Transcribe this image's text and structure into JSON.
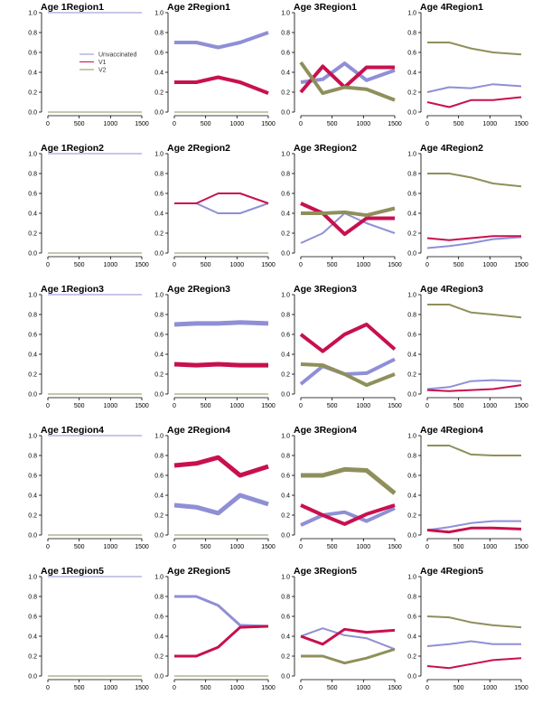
{
  "colors": {
    "Unvaccinated": "#8f8fd6",
    "V1": "#c8104e",
    "V2": "#8f8f5c"
  },
  "legend": {
    "items": [
      "Unvaccinated",
      "V1",
      "V2"
    ]
  },
  "chart_data": {
    "type": "line",
    "layout": "small-multiples grid, 5 rows x 4 columns",
    "xticks": [
      "0",
      "500",
      "1000",
      "1500"
    ],
    "yticks": [
      "0.0",
      "0.2",
      "0.4",
      "0.6",
      "0.8",
      "1.0"
    ],
    "xlim": [
      0,
      1500
    ],
    "ylim": [
      0,
      1
    ],
    "series_names": [
      "Unvaccinated",
      "V1",
      "V2"
    ],
    "legend_position": "inside first panel, upper-middle",
    "panels": [
      {
        "title": "Age 1Region1",
        "x": [
          0,
          1500
        ],
        "series": [
          {
            "name": "Unvaccinated",
            "values": [
              1,
              1
            ],
            "width": 1
          },
          {
            "name": "V1",
            "values": [
              0,
              0
            ],
            "width": 1
          },
          {
            "name": "V2",
            "values": [
              0,
              0
            ],
            "width": 1
          }
        ]
      },
      {
        "title": "Age 2Region1",
        "x": [
          0,
          350,
          700,
          1050,
          1500
        ],
        "series": [
          {
            "name": "Unvaccinated",
            "values": [
              0.7,
              0.7,
              0.65,
              0.7,
              0.8
            ],
            "width": 4
          },
          {
            "name": "V1",
            "values": [
              0.3,
              0.3,
              0.35,
              0.3,
              0.19
            ],
            "width": 4
          },
          {
            "name": "V2",
            "values": [
              0,
              0,
              0,
              0,
              0
            ],
            "width": 1
          }
        ]
      },
      {
        "title": "Age 3Region1",
        "x": [
          0,
          350,
          700,
          1050,
          1500
        ],
        "series": [
          {
            "name": "Unvaccinated",
            "values": [
              0.3,
              0.33,
              0.49,
              0.32,
              0.42
            ],
            "width": 4
          },
          {
            "name": "V1",
            "values": [
              0.2,
              0.46,
              0.25,
              0.45,
              0.45
            ],
            "width": 4
          },
          {
            "name": "V2",
            "values": [
              0.5,
              0.19,
              0.25,
              0.23,
              0.12
            ],
            "width": 4
          }
        ]
      },
      {
        "title": "Age 4Region1",
        "x": [
          0,
          350,
          700,
          1050,
          1500
        ],
        "series": [
          {
            "name": "Unvaccinated",
            "values": [
              0.2,
              0.25,
              0.24,
              0.28,
              0.26
            ],
            "width": 2
          },
          {
            "name": "V1",
            "values": [
              0.1,
              0.05,
              0.12,
              0.12,
              0.15
            ],
            "width": 2
          },
          {
            "name": "V2",
            "values": [
              0.7,
              0.7,
              0.64,
              0.6,
              0.58
            ],
            "width": 2
          }
        ]
      },
      {
        "title": "Age 1Region2",
        "x": [
          0,
          1500
        ],
        "series": [
          {
            "name": "Unvaccinated",
            "values": [
              1,
              1
            ],
            "width": 1
          },
          {
            "name": "V1",
            "values": [
              0,
              0
            ],
            "width": 1
          },
          {
            "name": "V2",
            "values": [
              0,
              0
            ],
            "width": 1
          }
        ]
      },
      {
        "title": "Age 2Region2",
        "x": [
          0,
          350,
          700,
          1050,
          1500
        ],
        "series": [
          {
            "name": "Unvaccinated",
            "values": [
              0.5,
              0.5,
              0.4,
              0.4,
              0.5
            ],
            "width": 2
          },
          {
            "name": "V1",
            "values": [
              0.5,
              0.5,
              0.6,
              0.6,
              0.5
            ],
            "width": 2
          },
          {
            "name": "V2",
            "values": [
              0,
              0,
              0,
              0,
              0
            ],
            "width": 1
          }
        ]
      },
      {
        "title": "Age 3Region2",
        "x": [
          0,
          350,
          700,
          1050,
          1500
        ],
        "series": [
          {
            "name": "Unvaccinated",
            "values": [
              0.1,
              0.2,
              0.4,
              0.3,
              0.2
            ],
            "width": 2
          },
          {
            "name": "V1",
            "values": [
              0.5,
              0.4,
              0.19,
              0.35,
              0.35
            ],
            "width": 4
          },
          {
            "name": "V2",
            "values": [
              0.4,
              0.4,
              0.41,
              0.38,
              0.45
            ],
            "width": 4
          }
        ]
      },
      {
        "title": "Age 4Region2",
        "x": [
          0,
          350,
          700,
          1050,
          1500
        ],
        "series": [
          {
            "name": "Unvaccinated",
            "values": [
              0.05,
              0.07,
              0.1,
              0.14,
              0.16
            ],
            "width": 2
          },
          {
            "name": "V1",
            "values": [
              0.15,
              0.13,
              0.15,
              0.17,
              0.17
            ],
            "width": 2
          },
          {
            "name": "V2",
            "values": [
              0.8,
              0.8,
              0.76,
              0.7,
              0.67
            ],
            "width": 2
          }
        ]
      },
      {
        "title": "Age 1Region3",
        "x": [
          0,
          1500
        ],
        "series": [
          {
            "name": "Unvaccinated",
            "values": [
              1,
              1
            ],
            "width": 1
          },
          {
            "name": "V1",
            "values": [
              0,
              0
            ],
            "width": 1
          },
          {
            "name": "V2",
            "values": [
              0,
              0
            ],
            "width": 1
          }
        ]
      },
      {
        "title": "Age 2Region3",
        "x": [
          0,
          350,
          700,
          1050,
          1500
        ],
        "series": [
          {
            "name": "Unvaccinated",
            "values": [
              0.7,
              0.71,
              0.71,
              0.72,
              0.71
            ],
            "width": 5
          },
          {
            "name": "V1",
            "values": [
              0.3,
              0.29,
              0.3,
              0.29,
              0.29
            ],
            "width": 5
          },
          {
            "name": "V2",
            "values": [
              0,
              0,
              0,
              0,
              0
            ],
            "width": 1
          }
        ]
      },
      {
        "title": "Age 3Region3",
        "x": [
          0,
          350,
          700,
          1050,
          1500
        ],
        "series": [
          {
            "name": "Unvaccinated",
            "values": [
              0.1,
              0.28,
              0.2,
              0.21,
              0.35
            ],
            "width": 4
          },
          {
            "name": "V1",
            "values": [
              0.6,
              0.43,
              0.6,
              0.7,
              0.45
            ],
            "width": 4
          },
          {
            "name": "V2",
            "values": [
              0.3,
              0.29,
              0.2,
              0.09,
              0.2
            ],
            "width": 4
          }
        ]
      },
      {
        "title": "Age 4Region3",
        "x": [
          0,
          350,
          700,
          1050,
          1500
        ],
        "series": [
          {
            "name": "Unvaccinated",
            "values": [
              0.05,
              0.07,
              0.13,
              0.14,
              0.13
            ],
            "width": 2
          },
          {
            "name": "V1",
            "values": [
              0.04,
              0.03,
              0.04,
              0.05,
              0.09
            ],
            "width": 2
          },
          {
            "name": "V2",
            "values": [
              0.9,
              0.9,
              0.82,
              0.8,
              0.77
            ],
            "width": 2
          }
        ]
      },
      {
        "title": "Age 1Region4",
        "x": [
          0,
          1500
        ],
        "series": [
          {
            "name": "Unvaccinated",
            "values": [
              1,
              1
            ],
            "width": 1
          },
          {
            "name": "V1",
            "values": [
              0,
              0
            ],
            "width": 1
          },
          {
            "name": "V2",
            "values": [
              0,
              0
            ],
            "width": 1
          }
        ]
      },
      {
        "title": "Age 2Region4",
        "x": [
          0,
          350,
          700,
          1050,
          1500
        ],
        "series": [
          {
            "name": "Unvaccinated",
            "values": [
              0.3,
              0.28,
              0.22,
              0.4,
              0.31
            ],
            "width": 5
          },
          {
            "name": "V1",
            "values": [
              0.7,
              0.72,
              0.78,
              0.6,
              0.69
            ],
            "width": 5
          },
          {
            "name": "V2",
            "values": [
              0,
              0,
              0,
              0,
              0
            ],
            "width": 1
          }
        ]
      },
      {
        "title": "Age 3Region4",
        "x": [
          0,
          350,
          700,
          1050,
          1500
        ],
        "series": [
          {
            "name": "Unvaccinated",
            "values": [
              0.1,
              0.2,
              0.23,
              0.14,
              0.27
            ],
            "width": 4
          },
          {
            "name": "V1",
            "values": [
              0.3,
              0.2,
              0.11,
              0.21,
              0.3
            ],
            "width": 4
          },
          {
            "name": "V2",
            "values": [
              0.6,
              0.6,
              0.66,
              0.65,
              0.42
            ],
            "width": 5
          }
        ]
      },
      {
        "title": "Age 4Region4",
        "x": [
          0,
          350,
          700,
          1050,
          1500
        ],
        "series": [
          {
            "name": "Unvaccinated",
            "values": [
              0.05,
              0.08,
              0.12,
              0.14,
              0.14
            ],
            "width": 2
          },
          {
            "name": "V1",
            "values": [
              0.05,
              0.03,
              0.07,
              0.07,
              0.06
            ],
            "width": 3
          },
          {
            "name": "V2",
            "values": [
              0.9,
              0.9,
              0.81,
              0.8,
              0.8
            ],
            "width": 2
          }
        ]
      },
      {
        "title": "Age 1Region5",
        "x": [
          0,
          1500
        ],
        "series": [
          {
            "name": "Unvaccinated",
            "values": [
              1,
              1
            ],
            "width": 1
          },
          {
            "name": "V1",
            "values": [
              0,
              0
            ],
            "width": 1
          },
          {
            "name": "V2",
            "values": [
              0,
              0
            ],
            "width": 1
          }
        ]
      },
      {
        "title": "Age 2Region5",
        "x": [
          0,
          350,
          700,
          1050,
          1500
        ],
        "series": [
          {
            "name": "Unvaccinated",
            "values": [
              0.8,
              0.8,
              0.71,
              0.51,
              0.5
            ],
            "width": 3
          },
          {
            "name": "V1",
            "values": [
              0.2,
              0.2,
              0.29,
              0.49,
              0.5
            ],
            "width": 3
          },
          {
            "name": "V2",
            "values": [
              0,
              0,
              0,
              0,
              0
            ],
            "width": 1
          }
        ]
      },
      {
        "title": "Age 3Region5",
        "x": [
          0,
          350,
          700,
          1050,
          1500
        ],
        "series": [
          {
            "name": "Unvaccinated",
            "values": [
              0.4,
              0.48,
              0.41,
              0.38,
              0.27
            ],
            "width": 2
          },
          {
            "name": "V1",
            "values": [
              0.4,
              0.32,
              0.47,
              0.44,
              0.46
            ],
            "width": 3
          },
          {
            "name": "V2",
            "values": [
              0.2,
              0.2,
              0.13,
              0.18,
              0.27
            ],
            "width": 3
          }
        ]
      },
      {
        "title": "Age 4Region5",
        "x": [
          0,
          350,
          700,
          1050,
          1500
        ],
        "series": [
          {
            "name": "Unvaccinated",
            "values": [
              0.3,
              0.32,
              0.35,
              0.32,
              0.32
            ],
            "width": 2
          },
          {
            "name": "V1",
            "values": [
              0.1,
              0.08,
              0.12,
              0.16,
              0.18
            ],
            "width": 2
          },
          {
            "name": "V2",
            "values": [
              0.6,
              0.59,
              0.54,
              0.51,
              0.49
            ],
            "width": 2
          }
        ]
      }
    ]
  }
}
